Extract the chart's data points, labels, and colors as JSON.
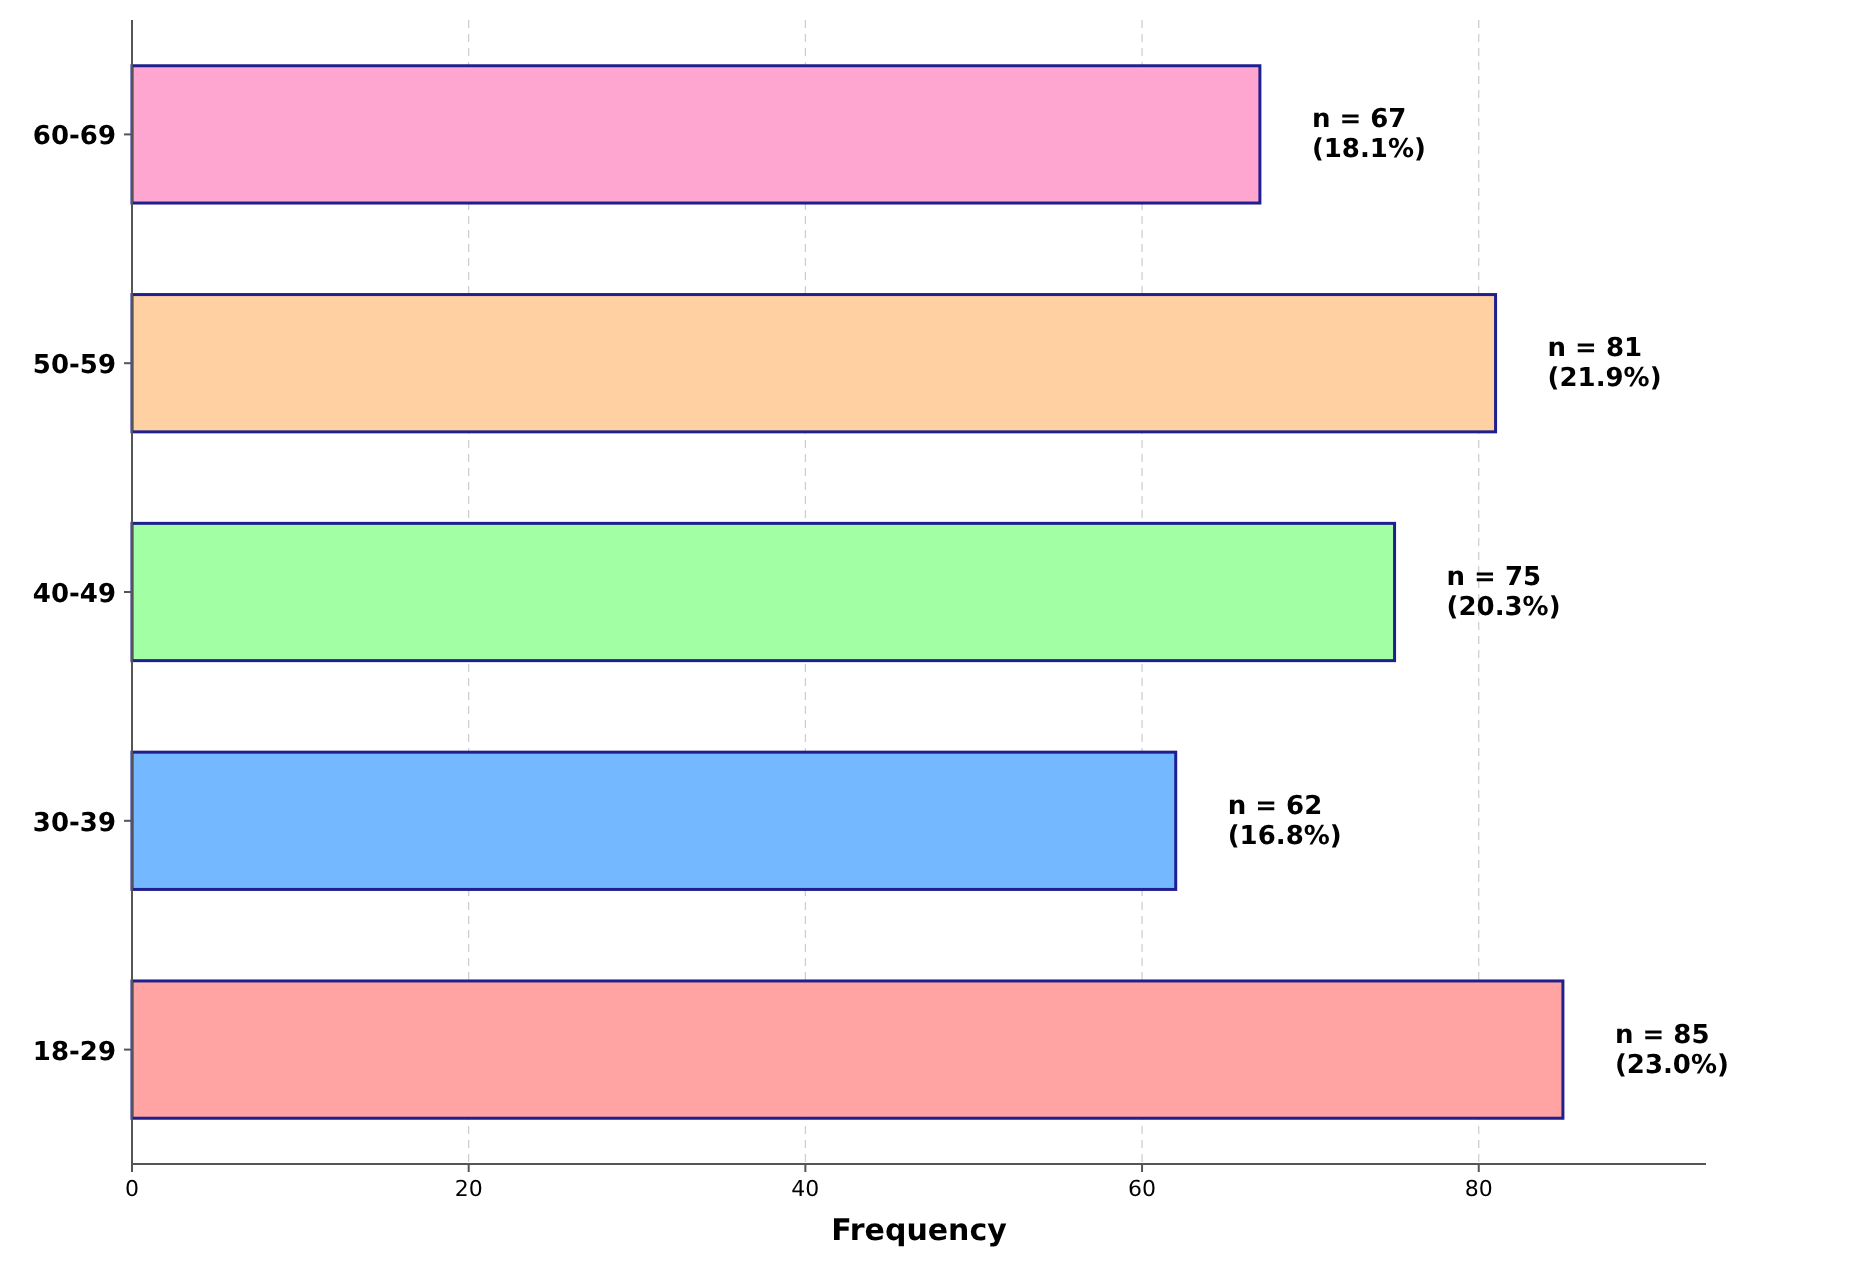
{
  "chart_data": {
    "type": "bar",
    "orientation": "horizontal",
    "xlabel": "Frequency",
    "categories": [
      "60-69",
      "50-59",
      "40-49",
      "30-39",
      "18-29"
    ],
    "values": [
      67,
      81,
      75,
      62,
      85
    ],
    "colors": [
      "#ffa6d0",
      "#ffd0a2",
      "#a3ffa3",
      "#74b9ff",
      "#ffa3a3"
    ],
    "value_labels": [
      "n = 67\n(18.1%)",
      "n = 81\n(21.9%)",
      "n = 75\n(20.3%)",
      "n = 62\n(16.8%)",
      "n = 85\n(23.0%)"
    ],
    "xlim": [
      0,
      93.5
    ],
    "xticks": [
      0,
      20,
      40,
      60,
      80
    ],
    "grid": "x"
  }
}
